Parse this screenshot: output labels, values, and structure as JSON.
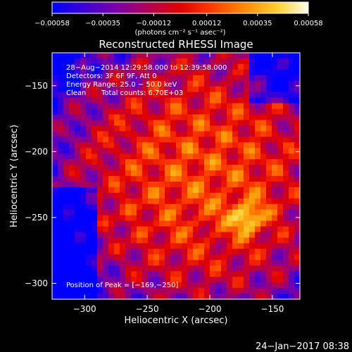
{
  "chart_data": {
    "type": "heatmap",
    "title": "Reconstructed RHESSI Image",
    "xlabel": "Heliocentric X (arcsec)",
    "ylabel": "Heliocentric Y (arcsec)",
    "xlim": [
      -326,
      -128
    ],
    "ylim": [
      -312,
      -125
    ],
    "x_ticks": [
      -300,
      -250,
      -200,
      -150
    ],
    "y_ticks": [
      -150,
      -200,
      -250,
      -300
    ],
    "x_tick_labels": [
      "−300",
      "−250",
      "−200",
      "−150"
    ],
    "y_tick_labels": [
      "−150",
      "−200",
      "−250",
      "−300"
    ],
    "colorbar": {
      "range": [
        -0.00058,
        0.00058
      ],
      "ticks": [
        -0.00058,
        -0.00035,
        -0.00012,
        0.00012,
        0.00035,
        0.00058
      ],
      "tick_labels": [
        "−0.00058",
        "−0.00035",
        "−0.00012",
        "0.00012",
        "0.00035",
        "0.00058"
      ],
      "unit": "(photons cm⁻² s⁻¹ asec⁻²)"
    },
    "annotations": {
      "time_range": "28−Aug−2014 12:29:58.000 to 12:39:58.000",
      "detectors": "Detectors: 3F 6F 9F, Att 0",
      "energy": "Energy Range: 25.0 − 50.0 keV",
      "method": "Clean",
      "counts": "Total counts: 6.70E+03",
      "peak": "Position of Peak = [−169,−250]"
    },
    "peak_position": [
      -169,
      -250
    ],
    "legend": "none",
    "grid": false
  },
  "footer": {
    "timestamp": "24−Jan−2017 08:38"
  }
}
